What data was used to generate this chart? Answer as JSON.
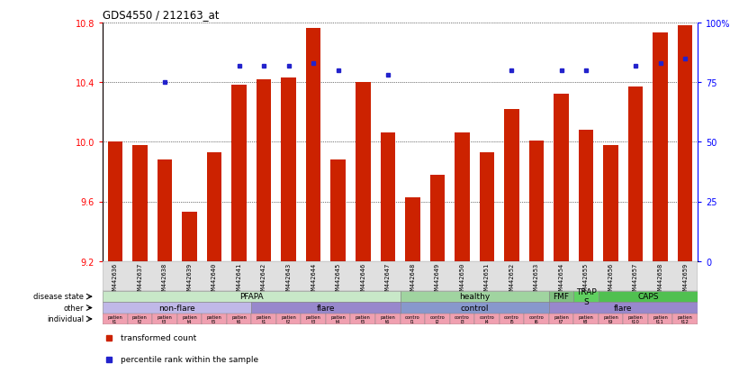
{
  "title": "GDS4550 / 212163_at",
  "samples": [
    "GSM442636",
    "GSM442637",
    "GSM442638",
    "GSM442639",
    "GSM442640",
    "GSM442641",
    "GSM442642",
    "GSM442643",
    "GSM442644",
    "GSM442645",
    "GSM442646",
    "GSM442647",
    "GSM442648",
    "GSM442649",
    "GSM442650",
    "GSM442651",
    "GSM442652",
    "GSM442653",
    "GSM442654",
    "GSM442655",
    "GSM442656",
    "GSM442657",
    "GSM442658",
    "GSM442659"
  ],
  "bar_values": [
    10.0,
    9.98,
    9.88,
    9.53,
    9.93,
    10.38,
    10.42,
    10.43,
    10.76,
    9.88,
    10.4,
    10.06,
    9.63,
    9.78,
    10.06,
    9.93,
    10.22,
    10.01,
    10.32,
    10.08,
    9.98,
    10.37,
    10.73,
    10.78
  ],
  "dot_values": [
    null,
    null,
    75,
    null,
    null,
    82,
    82,
    82,
    83,
    80,
    null,
    78,
    null,
    null,
    null,
    null,
    80,
    null,
    80,
    80,
    null,
    82,
    83,
    85
  ],
  "ymin": 9.2,
  "ymax": 10.8,
  "yticks": [
    9.2,
    9.6,
    10.0,
    10.4,
    10.8
  ],
  "y2ticks": [
    0,
    25,
    50,
    75,
    100
  ],
  "bar_color": "#cc2200",
  "dot_color": "#2222cc",
  "bar_width": 0.6,
  "disease_state": [
    {
      "label": "PFAPA",
      "start": 0,
      "end": 12,
      "color": "#c8e8c8"
    },
    {
      "label": "healthy",
      "start": 12,
      "end": 18,
      "color": "#a0d4a0"
    },
    {
      "label": "FMF",
      "start": 18,
      "end": 19,
      "color": "#80c080"
    },
    {
      "label": "TRAPS",
      "start": 19,
      "end": 20,
      "color": "#60d060"
    },
    {
      "label": "CAPS",
      "start": 20,
      "end": 24,
      "color": "#50c050"
    }
  ],
  "other": [
    {
      "label": "non-flare",
      "start": 0,
      "end": 6,
      "color": "#c0b8e8"
    },
    {
      "label": "flare",
      "start": 6,
      "end": 12,
      "color": "#9888cc"
    },
    {
      "label": "control",
      "start": 12,
      "end": 18,
      "color": "#8898cc"
    },
    {
      "label": "flare",
      "start": 18,
      "end": 24,
      "color": "#9888cc"
    }
  ],
  "individual_labels_top": [
    "patien",
    "patien",
    "patien",
    "patien",
    "patien",
    "patien",
    "patien",
    "patien",
    "patien",
    "patien",
    "patien",
    "patien",
    "contro",
    "contro",
    "contro",
    "contro",
    "contro",
    "contro",
    "patien",
    "patien",
    "patien",
    "patien",
    "patien",
    "patien"
  ],
  "individual_labels_bot": [
    "t1",
    "t2",
    "t3",
    "t4",
    "t5",
    "t6",
    "t1",
    "t2",
    "t3",
    "t4",
    "t5",
    "t6",
    "l1",
    "l2",
    "l3",
    "l4",
    "l5",
    "l6",
    "t7",
    "t8",
    "t9",
    "t10",
    "t11",
    "t12"
  ],
  "individual_color": "#f0a0b0",
  "row_labels": [
    "disease state",
    "other",
    "individual"
  ],
  "traps_label": "TRAP\nS"
}
